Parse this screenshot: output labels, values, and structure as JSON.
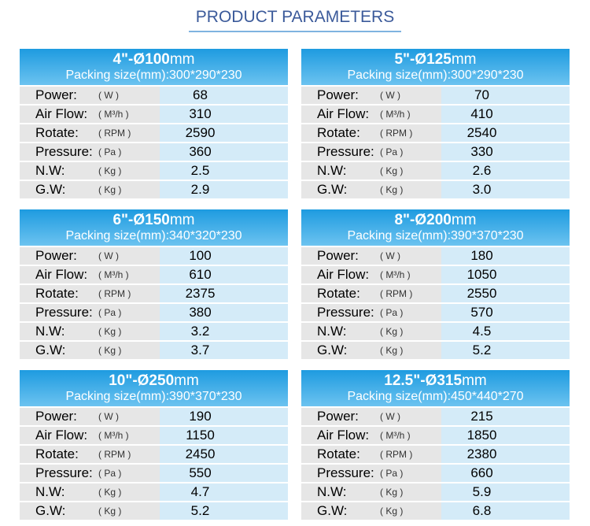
{
  "header": {
    "title": "PRODUCT PARAMETERS"
  },
  "cards": [
    {
      "model": "4\"-Ø100",
      "unit": "mm",
      "packing": "Packing size(mm):300*290*230",
      "rows": [
        [
          "Power:",
          "( W )",
          "68"
        ],
        [
          "Air Flow:",
          "( M³/h )",
          "310"
        ],
        [
          "Rotate:",
          "( RPM )",
          "2590"
        ],
        [
          "Pressure:",
          "( Pa )",
          "360"
        ],
        [
          "N.W:",
          "( Kg )",
          "2.5"
        ],
        [
          "G.W:",
          "( Kg )",
          "2.9"
        ]
      ]
    },
    {
      "model": "5\"-Ø125",
      "unit": "mm",
      "packing": "Packing size(mm):300*290*230",
      "rows": [
        [
          "Power:",
          "( W )",
          "70"
        ],
        [
          "Air Flow:",
          "( M³/h )",
          "410"
        ],
        [
          "Rotate:",
          "( RPM )",
          "2540"
        ],
        [
          "Pressure:",
          "( Pa )",
          "330"
        ],
        [
          "N.W:",
          "( Kg )",
          "2.6"
        ],
        [
          "G.W:",
          "( Kg )",
          "3.0"
        ]
      ]
    },
    {
      "model": "6\"-Ø150",
      "unit": "mm",
      "packing": "Packing size(mm):340*320*230",
      "rows": [
        [
          "Power:",
          "( W )",
          "100"
        ],
        [
          "Air Flow:",
          "( M³/h )",
          "610"
        ],
        [
          "Rotate:",
          "( RPM )",
          "2375"
        ],
        [
          "Pressure:",
          "( Pa )",
          "380"
        ],
        [
          "N.W:",
          "( Kg )",
          "3.2"
        ],
        [
          "G.W:",
          "( Kg )",
          "3.7"
        ]
      ]
    },
    {
      "model": "8\"-Ø200",
      "unit": "mm",
      "packing": "Packing size(mm):390*370*230",
      "rows": [
        [
          "Power:",
          "( W )",
          "180"
        ],
        [
          "Air Flow:",
          "( M³/h )",
          "1050"
        ],
        [
          "Rotate:",
          "( RPM )",
          "2550"
        ],
        [
          "Pressure:",
          "( Pa )",
          "570"
        ],
        [
          "N.W:",
          "( Kg )",
          "4.5"
        ],
        [
          "G.W:",
          "( Kg )",
          "5.2"
        ]
      ]
    },
    {
      "model": "10\"-Ø250",
      "unit": "mm",
      "packing": "Packing size(mm):390*370*230",
      "rows": [
        [
          "Power:",
          "( W )",
          "190"
        ],
        [
          "Air Flow:",
          "( M³/h )",
          "1150"
        ],
        [
          "Rotate:",
          "( RPM )",
          "2450"
        ],
        [
          "Pressure:",
          "( Pa )",
          "550"
        ],
        [
          "N.W:",
          "( Kg )",
          "4.7"
        ],
        [
          "G.W:",
          "( Kg )",
          "5.2"
        ]
      ]
    },
    {
      "model": "12.5\"-Ø315",
      "unit": "mm",
      "packing": "Packing size(mm):450*440*270",
      "rows": [
        [
          "Power:",
          "( W )",
          "215"
        ],
        [
          "Air Flow:",
          "( M³/h )",
          "1850"
        ],
        [
          "Rotate:",
          "( RPM )",
          "2380"
        ],
        [
          "Pressure:",
          "( Pa )",
          "660"
        ],
        [
          "N.W:",
          "( Kg )",
          "5.9"
        ],
        [
          "G.W:",
          "( Kg )",
          "6.8"
        ]
      ]
    }
  ]
}
